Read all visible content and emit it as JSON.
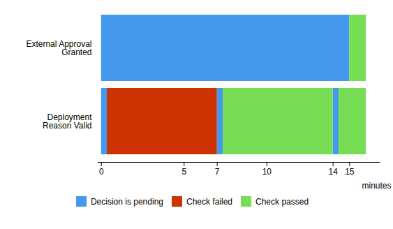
{
  "chart_data": {
    "type": "bar",
    "orientation": "horizontal",
    "stacked": true,
    "categories": [
      "External Approval\nGranted",
      "Deployment\nReason Valid"
    ],
    "series": [
      {
        "name": "Decision is pending",
        "color": "#4499ee",
        "segments": [
          {
            "category": "External Approval\nGranted",
            "start": 0,
            "end": 15
          },
          {
            "category": "Deployment\nReason Valid",
            "start": 0,
            "end": 0.35
          },
          {
            "category": "Deployment\nReason Valid",
            "start": 7,
            "end": 7.35
          },
          {
            "category": "Deployment\nReason Valid",
            "start": 14,
            "end": 14.35
          }
        ]
      },
      {
        "name": "Check failed",
        "color": "#cc3300",
        "segments": [
          {
            "category": "Deployment\nReason Valid",
            "start": 0.35,
            "end": 7
          }
        ]
      },
      {
        "name": "Check passed",
        "color": "#77dd55",
        "segments": [
          {
            "category": "External Approval\nGranted",
            "start": 15,
            "end": 16
          },
          {
            "category": "Deployment\nReason Valid",
            "start": 7.35,
            "end": 14
          },
          {
            "category": "Deployment\nReason Valid",
            "start": 14.35,
            "end": 16
          }
        ]
      }
    ],
    "xlabel": "minutes",
    "xlim": [
      -0.2,
      16.8
    ],
    "xticks": [
      0,
      5,
      7,
      10,
      14,
      15
    ],
    "grid": false,
    "legend": "bottom"
  }
}
